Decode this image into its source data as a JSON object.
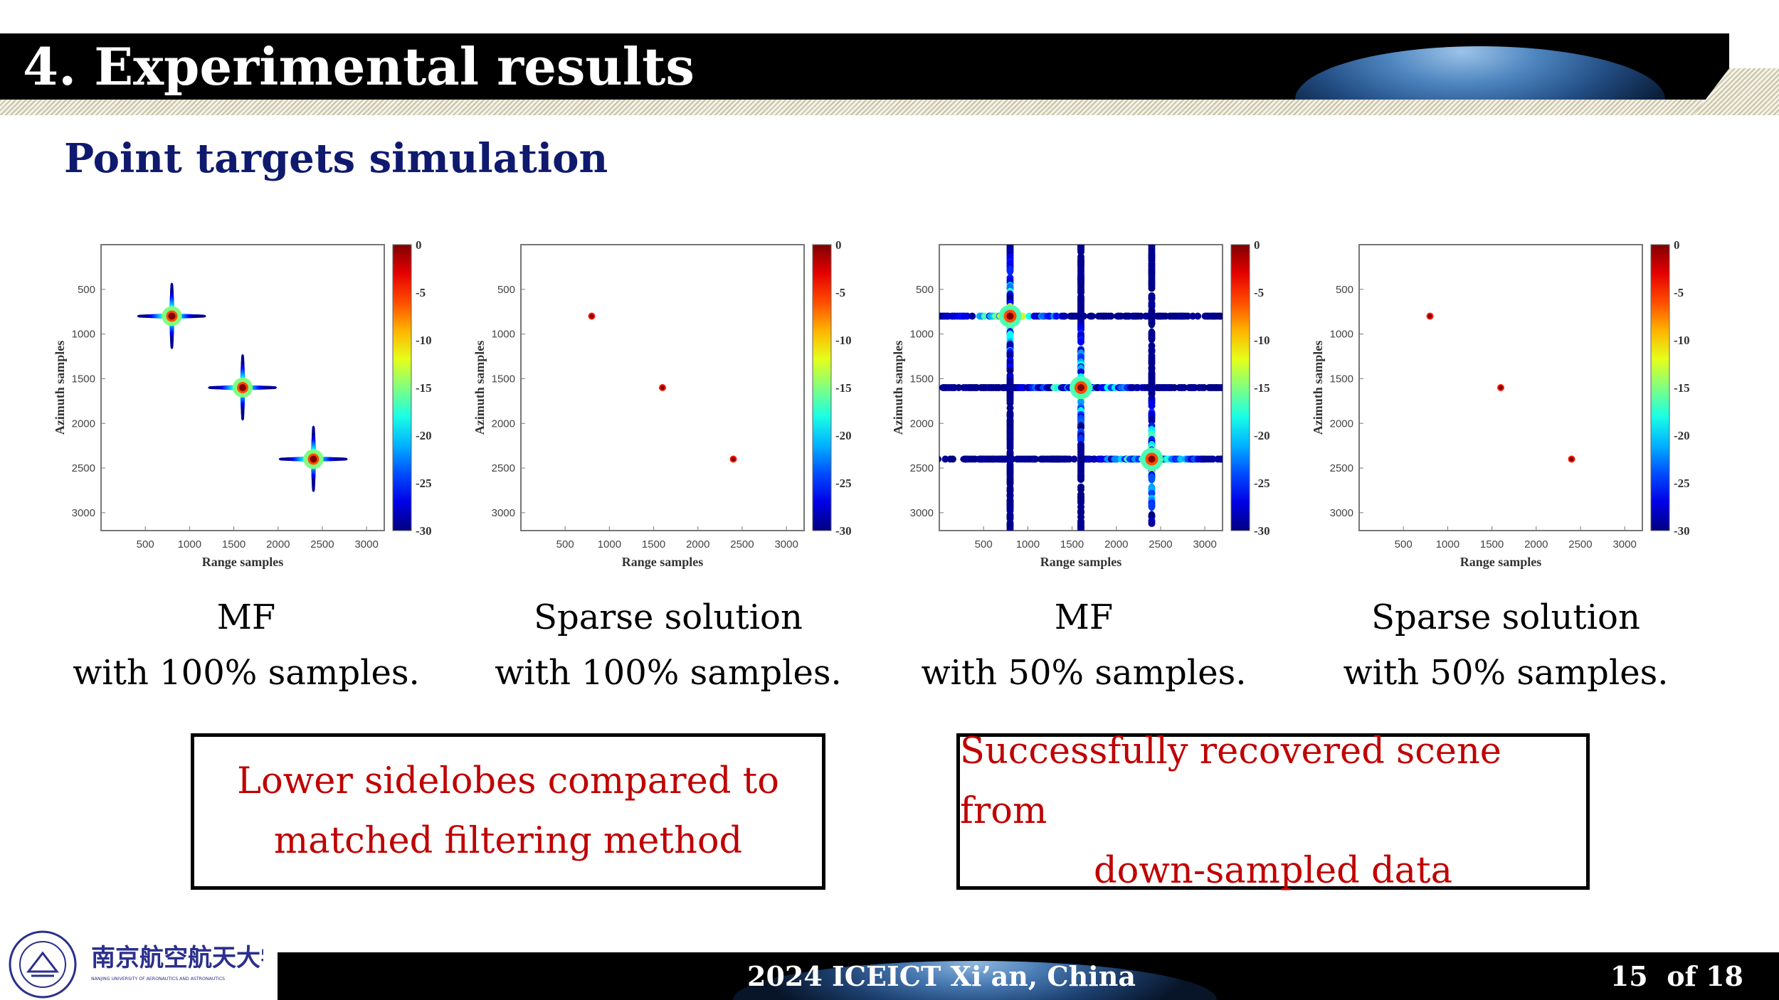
{
  "header": {
    "title": "4. Experimental results"
  },
  "subtitle": "Point targets simulation",
  "chart_data": [
    {
      "type": "heatmap",
      "variant": "mf",
      "xlabel": "Range samples",
      "ylabel": "Azimuth samples",
      "xlim": [
        0,
        3200
      ],
      "ylim": [
        0,
        3200
      ],
      "xticks": [
        "500",
        "1000",
        "1500",
        "2000",
        "2500",
        "3000"
      ],
      "yticks": [
        "500",
        "1000",
        "1500",
        "2000",
        "2500",
        "3000"
      ],
      "colorbar": {
        "range": [
          -30,
          0
        ],
        "ticks": [
          "0",
          "-5",
          "-10",
          "-15",
          "-20",
          "-25",
          "-30"
        ],
        "colormap": "jet"
      },
      "targets": [
        {
          "x": 800,
          "y": 800,
          "db": 0
        },
        {
          "x": 1600,
          "y": 1600,
          "db": 0
        },
        {
          "x": 2400,
          "y": 2400,
          "db": 0
        }
      ],
      "sampling": "100%"
    },
    {
      "type": "heatmap",
      "variant": "sparse",
      "xlabel": "Range samples",
      "ylabel": "Azimuth samples",
      "xlim": [
        0,
        3200
      ],
      "ylim": [
        0,
        3200
      ],
      "xticks": [
        "500",
        "1000",
        "1500",
        "2000",
        "2500",
        "3000"
      ],
      "yticks": [
        "500",
        "1000",
        "1500",
        "2000",
        "2500",
        "3000"
      ],
      "colorbar": {
        "range": [
          -30,
          0
        ],
        "ticks": [
          "0",
          "-5",
          "-10",
          "-15",
          "-20",
          "-25",
          "-30"
        ],
        "colormap": "jet"
      },
      "targets": [
        {
          "x": 800,
          "y": 800,
          "db": 0
        },
        {
          "x": 1600,
          "y": 1600,
          "db": 0
        },
        {
          "x": 2400,
          "y": 2400,
          "db": 0
        }
      ],
      "sampling": "100%"
    },
    {
      "type": "heatmap",
      "variant": "mf-undersampled",
      "xlabel": "Range samples",
      "ylabel": "Azimuth samples",
      "xlim": [
        0,
        3200
      ],
      "ylim": [
        0,
        3200
      ],
      "xticks": [
        "500",
        "1000",
        "1500",
        "2000",
        "2500",
        "3000"
      ],
      "yticks": [
        "500",
        "1000",
        "1500",
        "2000",
        "2500",
        "3000"
      ],
      "colorbar": {
        "range": [
          -30,
          0
        ],
        "ticks": [
          "0",
          "-5",
          "-10",
          "-15",
          "-20",
          "-25",
          "-30"
        ],
        "colormap": "jet"
      },
      "targets": [
        {
          "x": 800,
          "y": 800,
          "db": 0
        },
        {
          "x": 1600,
          "y": 1600,
          "db": 0
        },
        {
          "x": 2400,
          "y": 2400,
          "db": 0
        }
      ],
      "sampling": "50%"
    },
    {
      "type": "heatmap",
      "variant": "sparse",
      "xlabel": "Range samples",
      "ylabel": "Azimuth samples",
      "xlim": [
        0,
        3200
      ],
      "ylim": [
        0,
        3200
      ],
      "xticks": [
        "500",
        "1000",
        "1500",
        "2000",
        "2500",
        "3000"
      ],
      "yticks": [
        "500",
        "1000",
        "1500",
        "2000",
        "2500",
        "3000"
      ],
      "colorbar": {
        "range": [
          -30,
          0
        ],
        "ticks": [
          "0",
          "-5",
          "-10",
          "-15",
          "-20",
          "-25",
          "-30"
        ],
        "colormap": "jet"
      },
      "targets": [
        {
          "x": 800,
          "y": 800,
          "db": 0
        },
        {
          "x": 1600,
          "y": 1600,
          "db": 0
        },
        {
          "x": 2400,
          "y": 2400,
          "db": 0
        }
      ],
      "sampling": "50%"
    }
  ],
  "captions": [
    {
      "line1": "MF",
      "line2": "with 100% samples."
    },
    {
      "line1": "Sparse solution",
      "line2": "with 100% samples."
    },
    {
      "line1": "MF",
      "line2": "with 50% samples."
    },
    {
      "line1": "Sparse solution",
      "line2": "with 50% samples."
    }
  ],
  "boxes": [
    {
      "line1": "Lower sidelobes compared to",
      "line2": "matched filtering method"
    },
    {
      "line1": "Successfully recovered scene from",
      "line2": "down-sampled data"
    }
  ],
  "footer": {
    "logo_text": "南京航空航天大学",
    "logo_subtext": "NANJING UNIVERSITY OF AERONAUTICS AND ASTRONAUTICS",
    "conference": "2024 ICEICT Xi’an, China",
    "page": "15",
    "of_total": "of 18"
  },
  "colors": {
    "title_navy": "#0f1a6e",
    "highlight_red": "#c00000",
    "header_bg": "#000000"
  }
}
